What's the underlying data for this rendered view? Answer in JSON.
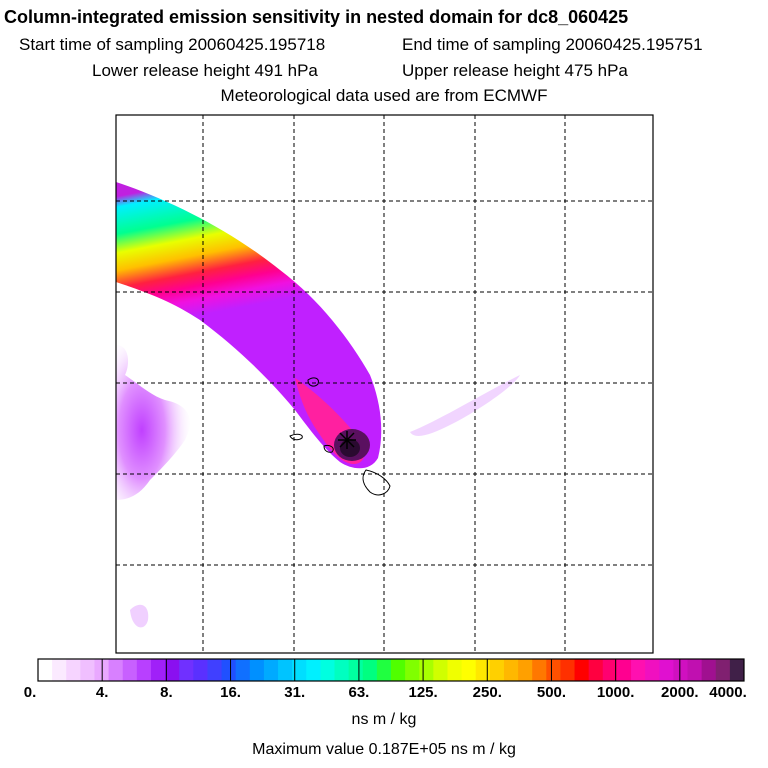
{
  "header": {
    "title": "Column-integrated emission sensitivity in nested domain for dc8_060425",
    "start_time": "Start time of sampling 20060425.195718",
    "end_time": "End time of sampling 20060425.195751",
    "lower_release": "Lower release height  491 hPa",
    "upper_release": "Upper release height  475 hPa",
    "met_data": "Meteorological data used are from ECMWF"
  },
  "colorbar": {
    "tick_labels": [
      "0.",
      "4.",
      "8.",
      "16.",
      "31.",
      "63.",
      "125.",
      "250.",
      "500.",
      "1000.",
      "2000.",
      "4000."
    ],
    "units": "ns m / kg"
  },
  "footer": {
    "max_value": "Maximum value  0.187E+05 ns m / kg"
  },
  "colors": {
    "low": "#f2ccff",
    "mid": "#00ffe0",
    "high": "#ff0000",
    "peak": "#3a1040"
  }
}
